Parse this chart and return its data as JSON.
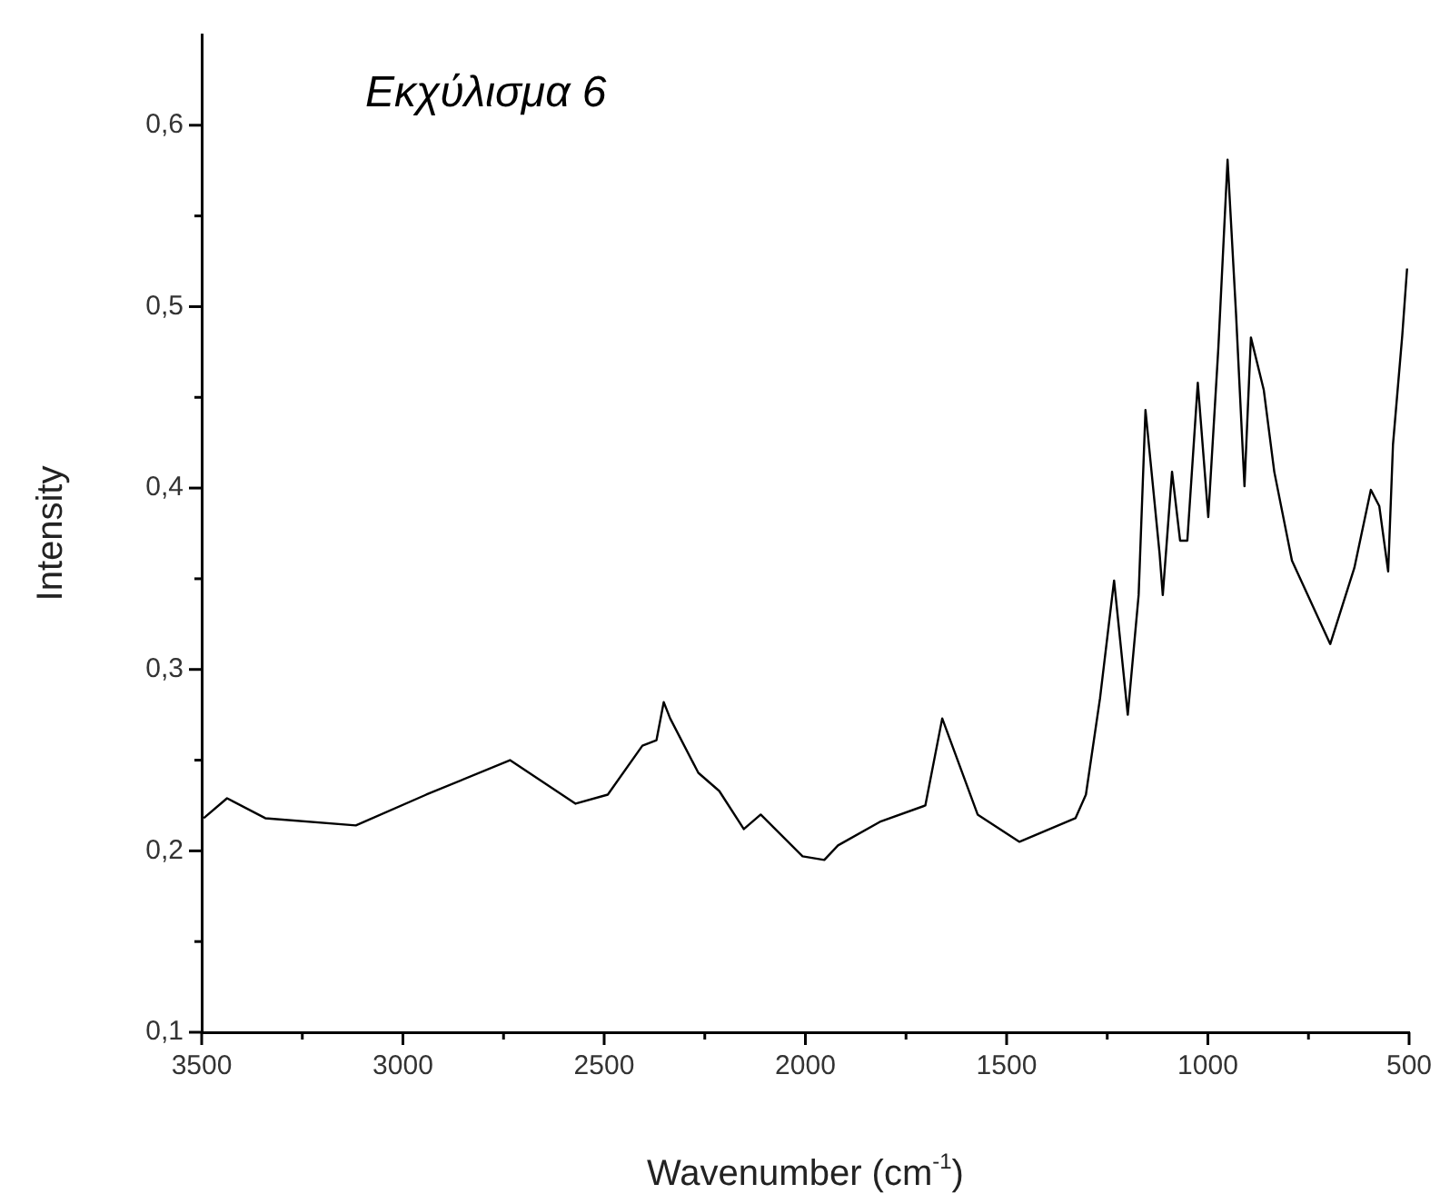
{
  "chart_data": {
    "type": "line",
    "title": "Εκχύλισμα 6",
    "xlabel": "Wavenumber (cm$^{-1}$)",
    "ylabel": "Intensity",
    "series": [
      {
        "color": "#000000",
        "x": [
          3495,
          3437,
          3342,
          3117,
          2942,
          2734,
          2571,
          2491,
          2405,
          2370,
          2352,
          2336,
          2266,
          2214,
          2153,
          2111,
          2007,
          1953,
          1919,
          1815,
          1702,
          1660,
          1572,
          1468,
          1329,
          1303,
          1268,
          1233,
          1199,
          1172,
          1155,
          1120,
          1112,
          1089,
          1069,
          1051,
          1025,
          999,
          974,
          951,
          930,
          909,
          893,
          861,
          835,
          791,
          696,
          636,
          595,
          574,
          552,
          540,
          517,
          505
        ],
        "values": [
          0.218,
          0.229,
          0.218,
          0.214,
          0.231,
          0.25,
          0.226,
          0.231,
          0.258,
          0.261,
          0.282,
          0.273,
          0.243,
          0.233,
          0.212,
          0.22,
          0.197,
          0.195,
          0.203,
          0.216,
          0.225,
          0.273,
          0.22,
          0.205,
          0.218,
          0.231,
          0.284,
          0.349,
          0.275,
          0.341,
          0.443,
          0.364,
          0.341,
          0.409,
          0.371,
          0.371,
          0.458,
          0.384,
          0.477,
          0.581,
          0.496,
          0.401,
          0.483,
          0.454,
          0.409,
          0.36,
          0.314,
          0.356,
          0.399,
          0.39,
          0.354,
          0.424,
          0.484,
          0.521
        ]
      }
    ],
    "xlim": [
      3500,
      500
    ],
    "ylim": [
      0.1,
      0.65
    ],
    "xticks": [
      3500,
      {
        "value": 3250,
        "label": null
      },
      3000,
      {
        "value": 2750,
        "label": null
      },
      2500,
      {
        "value": 2250,
        "label": null
      },
      2000,
      {
        "value": 1750,
        "label": null
      },
      1500,
      {
        "value": 1250,
        "label": null
      },
      1000,
      {
        "value": 750,
        "label": null
      },
      500
    ],
    "yticks": [
      {
        "value": 0.1,
        "label": "0,1"
      },
      {
        "value": 0.15,
        "label": null
      },
      {
        "value": 0.2,
        "label": "0,2"
      },
      {
        "value": 0.25,
        "label": null
      },
      {
        "value": 0.3,
        "label": "0,3"
      },
      {
        "value": 0.35,
        "label": null
      },
      {
        "value": 0.4,
        "label": "0,4"
      },
      {
        "value": 0.45,
        "label": null
      },
      {
        "value": 0.5,
        "label": "0,5"
      },
      {
        "value": 0.55,
        "label": null
      },
      {
        "value": 0.6,
        "label": "0,6"
      }
    ],
    "grid": false,
    "legend": false,
    "marker": "none",
    "line_style": "solid"
  }
}
